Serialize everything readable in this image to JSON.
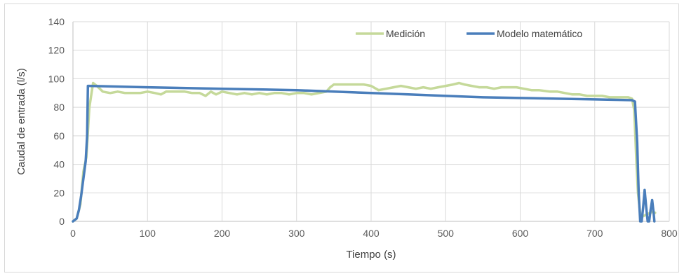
{
  "chart_data": {
    "type": "line",
    "xlabel": "Tiempo (s)",
    "ylabel": "Caudal de entrada  (l/s)",
    "xlim": [
      0,
      800
    ],
    "ylim": [
      0,
      140
    ],
    "x_ticks": [
      "0",
      "100",
      "200",
      "300",
      "400",
      "500",
      "600",
      "700",
      "800"
    ],
    "y_ticks": [
      "0",
      "20",
      "40",
      "60",
      "80",
      "100",
      "120",
      "140"
    ],
    "grid": true,
    "legend_position": "top-right",
    "series": [
      {
        "name": "Medición",
        "color": "#c5d99a",
        "points": [
          [
            0,
            0
          ],
          [
            5,
            2
          ],
          [
            10,
            12
          ],
          [
            14,
            35
          ],
          [
            18,
            45
          ],
          [
            22,
            80
          ],
          [
            27,
            97
          ],
          [
            32,
            95
          ],
          [
            40,
            91
          ],
          [
            50,
            90
          ],
          [
            60,
            91
          ],
          [
            70,
            90
          ],
          [
            80,
            90
          ],
          [
            90,
            90
          ],
          [
            100,
            91
          ],
          [
            110,
            90
          ],
          [
            118,
            89
          ],
          [
            125,
            91
          ],
          [
            135,
            91
          ],
          [
            150,
            91
          ],
          [
            160,
            90
          ],
          [
            170,
            90
          ],
          [
            178,
            88
          ],
          [
            185,
            91
          ],
          [
            192,
            89
          ],
          [
            200,
            91
          ],
          [
            210,
            90
          ],
          [
            220,
            89
          ],
          [
            230,
            90
          ],
          [
            240,
            89
          ],
          [
            250,
            90
          ],
          [
            260,
            89
          ],
          [
            270,
            90
          ],
          [
            280,
            90
          ],
          [
            290,
            89
          ],
          [
            300,
            90
          ],
          [
            310,
            90
          ],
          [
            320,
            89
          ],
          [
            330,
            90
          ],
          [
            340,
            91
          ],
          [
            345,
            94
          ],
          [
            350,
            96
          ],
          [
            360,
            96
          ],
          [
            370,
            96
          ],
          [
            380,
            96
          ],
          [
            390,
            96
          ],
          [
            400,
            95
          ],
          [
            410,
            92
          ],
          [
            420,
            93
          ],
          [
            430,
            94
          ],
          [
            440,
            95
          ],
          [
            450,
            94
          ],
          [
            460,
            93
          ],
          [
            470,
            94
          ],
          [
            480,
            93
          ],
          [
            490,
            94
          ],
          [
            500,
            95
          ],
          [
            510,
            96
          ],
          [
            518,
            97
          ],
          [
            525,
            96
          ],
          [
            535,
            95
          ],
          [
            545,
            94
          ],
          [
            555,
            94
          ],
          [
            565,
            93
          ],
          [
            575,
            94
          ],
          [
            585,
            94
          ],
          [
            595,
            94
          ],
          [
            605,
            93
          ],
          [
            615,
            92
          ],
          [
            625,
            92
          ],
          [
            640,
            91
          ],
          [
            650,
            91
          ],
          [
            660,
            90
          ],
          [
            670,
            89
          ],
          [
            680,
            89
          ],
          [
            690,
            88
          ],
          [
            700,
            88
          ],
          [
            710,
            88
          ],
          [
            720,
            87
          ],
          [
            730,
            87
          ],
          [
            740,
            87
          ],
          [
            745,
            87
          ],
          [
            750,
            86
          ],
          [
            753,
            78
          ],
          [
            756,
            40
          ],
          [
            758,
            20
          ],
          [
            761,
            5
          ],
          [
            763,
            3
          ],
          [
            770,
            5
          ],
          [
            775,
            6
          ],
          [
            778,
            7
          ],
          [
            781,
            6
          ]
        ]
      },
      {
        "name": "Modelo matemático",
        "color": "#4a7ebb",
        "points": [
          [
            0,
            0
          ],
          [
            5,
            2
          ],
          [
            8,
            8
          ],
          [
            11,
            18
          ],
          [
            14,
            30
          ],
          [
            17,
            42
          ],
          [
            19,
            60
          ],
          [
            20,
            95
          ],
          [
            100,
            94
          ],
          [
            200,
            93
          ],
          [
            300,
            92
          ],
          [
            350,
            91
          ],
          [
            400,
            90
          ],
          [
            450,
            89
          ],
          [
            500,
            88
          ],
          [
            550,
            87
          ],
          [
            600,
            86.5
          ],
          [
            650,
            86
          ],
          [
            700,
            85.5
          ],
          [
            750,
            85
          ],
          [
            754,
            84
          ],
          [
            757,
            55
          ],
          [
            759,
            20
          ],
          [
            761,
            0
          ],
          [
            763,
            0
          ],
          [
            765,
            10
          ],
          [
            767,
            22
          ],
          [
            769,
            10
          ],
          [
            771,
            0
          ],
          [
            773,
            0
          ],
          [
            775,
            8
          ],
          [
            777,
            15
          ],
          [
            779,
            6
          ],
          [
            780,
            0
          ]
        ]
      }
    ]
  }
}
